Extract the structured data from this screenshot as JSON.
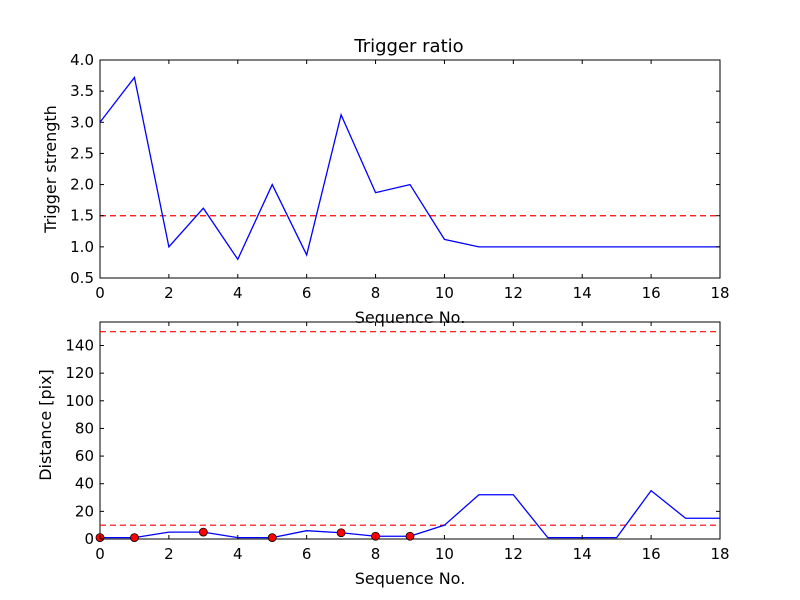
{
  "chart_data": [
    {
      "type": "line",
      "title": "Trigger ratio",
      "xlabel": "Sequence No.",
      "ylabel": "Trigger strength",
      "xlim": [
        0,
        18
      ],
      "ylim": [
        0.5,
        4.0
      ],
      "xticks": [
        "0",
        "2",
        "4",
        "6",
        "8",
        "10",
        "12",
        "14",
        "16",
        "18"
      ],
      "yticks": [
        "0.5",
        "1.0",
        "1.5",
        "2.0",
        "2.5",
        "3.0",
        "3.5",
        "4.0"
      ],
      "series": [
        {
          "color": "#0000ff",
          "style": "solid",
          "x": [
            0,
            1,
            2,
            3,
            4,
            5,
            6,
            7,
            8,
            9,
            10,
            11,
            12,
            13,
            14,
            15,
            16,
            17,
            18
          ],
          "y": [
            3.0,
            3.72,
            1.0,
            1.62,
            0.8,
            2.0,
            0.87,
            3.12,
            1.87,
            2.0,
            1.12,
            1.0,
            1.0,
            1.0,
            1.0,
            1.0,
            1.0,
            1.0,
            1.0
          ]
        }
      ],
      "hlines": [
        {
          "y": 1.5,
          "color": "#ff0000",
          "style": "dashed"
        }
      ],
      "grid": false
    },
    {
      "type": "line",
      "title": "",
      "xlabel": "Sequence No.",
      "ylabel": "Distance [pix]",
      "xlim": [
        0,
        18
      ],
      "ylim": [
        0,
        157
      ],
      "xticks": [
        "0",
        "2",
        "4",
        "6",
        "8",
        "10",
        "12",
        "14",
        "16",
        "18"
      ],
      "yticks": [
        "0",
        "20",
        "40",
        "60",
        "80",
        "100",
        "120",
        "140"
      ],
      "series": [
        {
          "color": "#0000ff",
          "style": "solid",
          "x": [
            0,
            1,
            2,
            3,
            4,
            5,
            6,
            7,
            8,
            9,
            10,
            11,
            12,
            13,
            14,
            15,
            16,
            17,
            18
          ],
          "y": [
            1,
            1,
            5,
            5,
            1,
            1,
            6,
            4.5,
            2,
            2,
            10,
            32,
            32,
            1,
            1,
            1,
            35,
            15,
            15
          ]
        },
        {
          "type": "scatter",
          "color": "#ff0000",
          "x": [
            0,
            1,
            3,
            5,
            7,
            8,
            9
          ],
          "y": [
            1,
            1,
            5,
            1,
            4.5,
            2,
            2
          ]
        }
      ],
      "hlines": [
        {
          "y": 10,
          "color": "#ff0000",
          "style": "dashed"
        },
        {
          "y": 150,
          "color": "#ff0000",
          "style": "dashed"
        }
      ],
      "grid": false
    }
  ]
}
